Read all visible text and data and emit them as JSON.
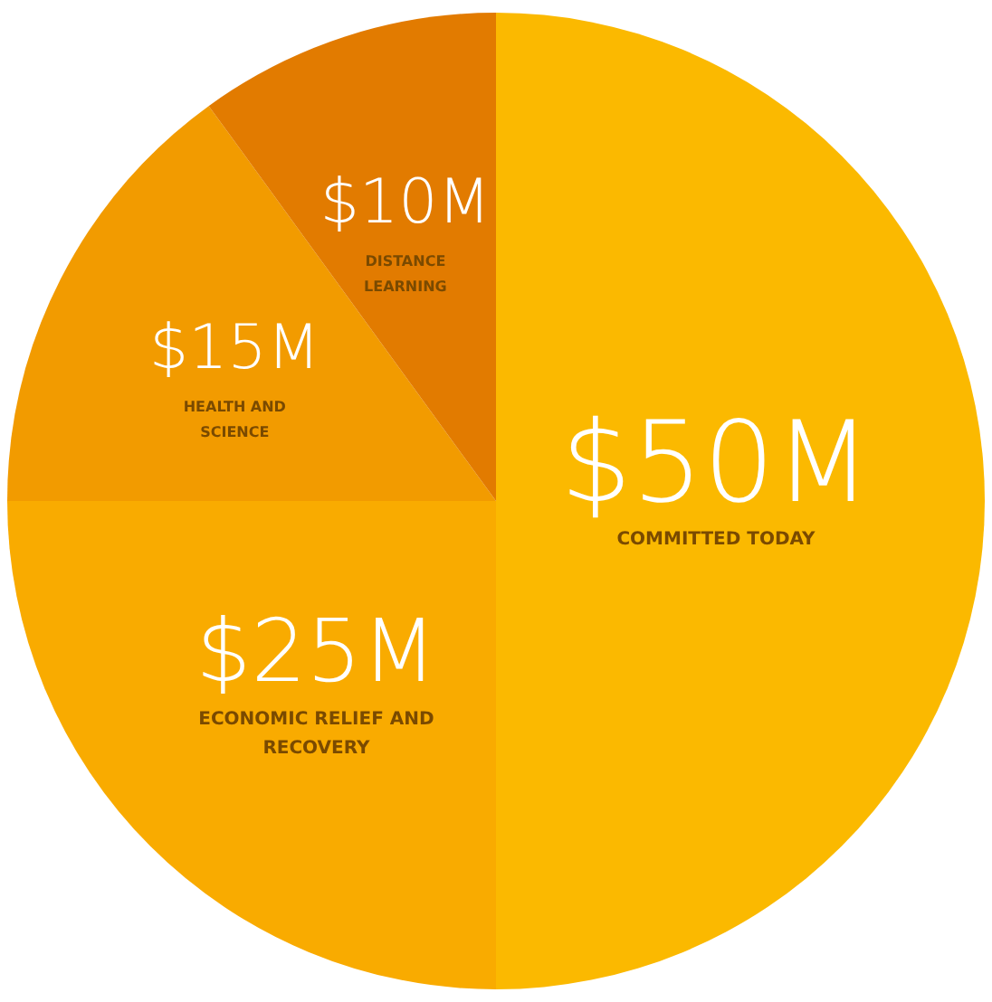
{
  "chart_data": {
    "type": "pie",
    "categories": [
      "COMMITTED TODAY",
      "ECONOMIC RELIEF AND RECOVERY",
      "HEALTH AND SCIENCE",
      "DISTANCE LEARNING"
    ],
    "values": [
      50,
      25,
      15,
      10
    ],
    "value_labels": [
      "$50M",
      "$25M",
      "$15M",
      "$10M"
    ],
    "colors": [
      "#fbb900",
      "#f9ab00",
      "#f29b00",
      "#e27b00"
    ],
    "legend": false
  }
}
